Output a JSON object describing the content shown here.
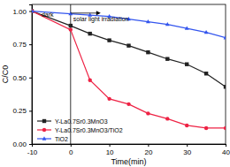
{
  "chart_data": {
    "type": "line",
    "x_label": "Time(min)",
    "y_label": "C/C0",
    "x": [
      -10,
      0,
      5,
      10,
      15,
      20,
      25,
      30,
      35,
      40
    ],
    "series": [
      {
        "name": "Y-La0.7Sr0.3MnO3",
        "color": "#222222",
        "marker": "square",
        "values": [
          1.0,
          0.89,
          0.83,
          0.78,
          0.74,
          0.69,
          0.64,
          0.6,
          0.53,
          0.43
        ]
      },
      {
        "name": "Y-La0.7Sr0.3MnO3/TiO2",
        "color": "#ee2244",
        "marker": "circle",
        "values": [
          1.0,
          0.86,
          0.48,
          0.34,
          0.3,
          0.23,
          0.19,
          0.14,
          0.12,
          0.12
        ]
      },
      {
        "name": "TiO2",
        "color": "#3355ee",
        "marker": "triangle",
        "values": [
          1.0,
          0.98,
          0.97,
          0.96,
          0.94,
          0.92,
          0.9,
          0.87,
          0.84,
          0.8
        ]
      }
    ],
    "xlim": [
      -10,
      40
    ],
    "xticks": [
      -10,
      0,
      10,
      20,
      30,
      40
    ],
    "ylim": [
      0,
      1.05
    ],
    "yticks": [
      {
        "value": 0,
        "label": "0.00"
      },
      0.25,
      {
        "value": 0.5,
        "label": "0.50"
      },
      0.75,
      {
        "value": 1,
        "label": "1.00"
      }
    ],
    "vline": 0,
    "annotations": [
      {
        "text": "dark",
        "x": -7.5,
        "y": 0.955
      },
      {
        "text": "solar light irradiation",
        "x": 0.7,
        "y": 0.925
      }
    ],
    "legend": "lower left",
    "grid": false
  }
}
